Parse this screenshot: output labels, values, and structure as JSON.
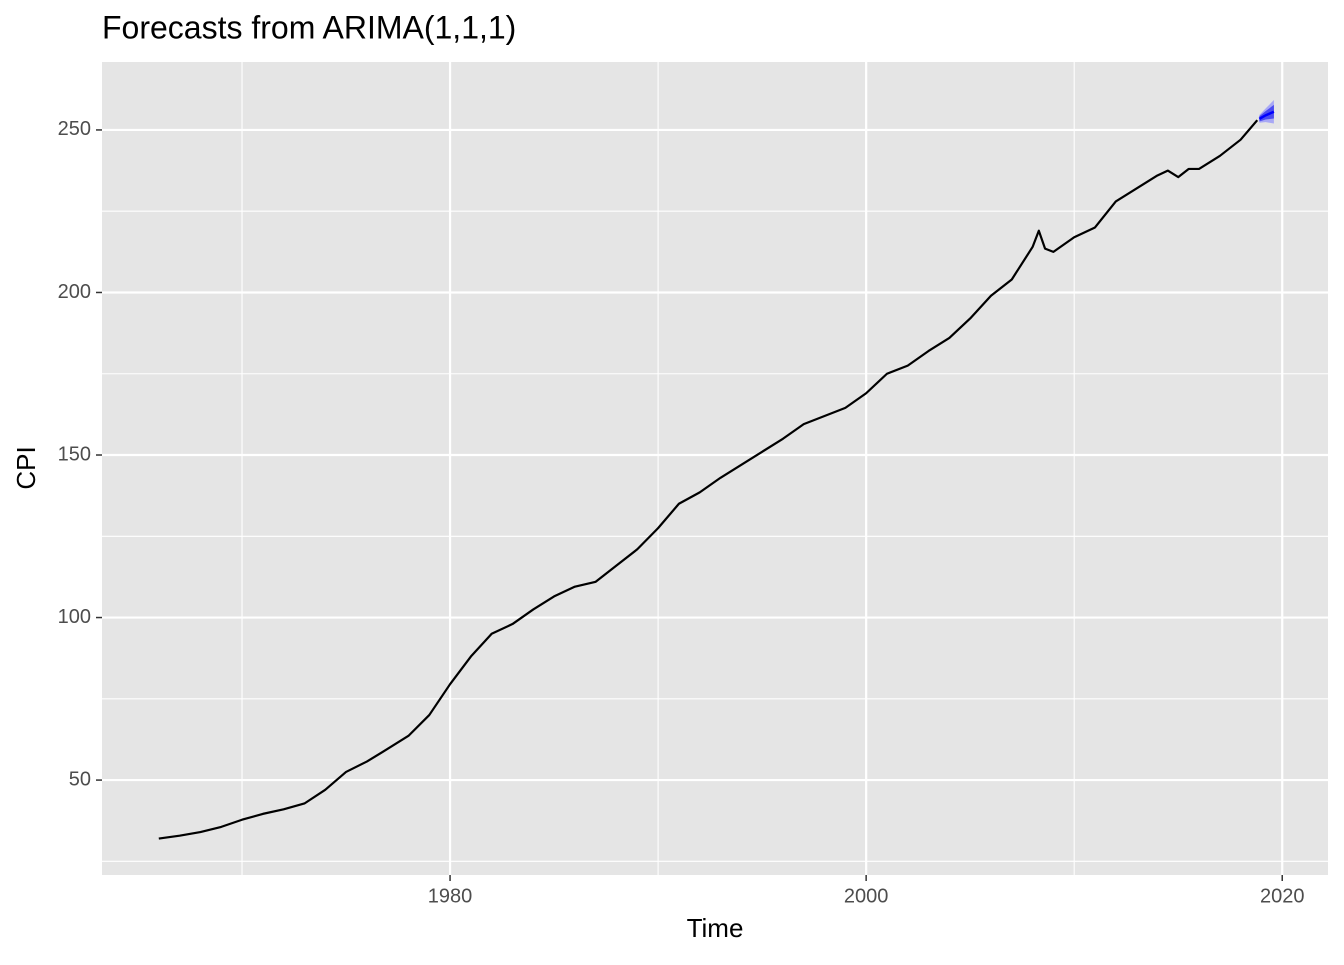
{
  "chart_data": {
    "type": "forecast",
    "title": "Forecasts from ARIMA(1,1,1)",
    "x_label": "Time",
    "y_label": "CPI",
    "xlim": [
      1963.27,
      2022.2
    ],
    "ylim": [
      20.8,
      270.9
    ],
    "xticks": [
      1980,
      2000,
      2020
    ],
    "yticks": [
      50,
      100,
      150,
      200,
      250
    ],
    "x_minor_grid": [
      1970,
      1990,
      2010
    ],
    "y_minor_grid": [
      25,
      75,
      125,
      175,
      225
    ],
    "grid": true,
    "color": "#000000",
    "x": [
      1966,
      1967,
      1968,
      1969,
      1970,
      1971,
      1972,
      1973,
      1974,
      1975,
      1976,
      1977,
      1978,
      1979,
      1980,
      1981,
      1982,
      1983,
      1984,
      1985,
      1986,
      1987,
      1988,
      1989,
      1990,
      1991,
      1992,
      1993,
      1994,
      1995,
      1996,
      1997,
      1998,
      1999,
      2000,
      2001,
      2002,
      2003,
      2004,
      2005,
      2006,
      2007,
      2008,
      2008.3,
      2008.6,
      2009,
      2010,
      2011,
      2012,
      2013,
      2014,
      2014.5,
      2015,
      2015.5,
      2016,
      2017,
      2018,
      2018.8
    ],
    "values": [
      32,
      32.9,
      34,
      35.6,
      37.8,
      39.6,
      41,
      42.8,
      47,
      52.5,
      55.7,
      59.6,
      63.6,
      70,
      79.5,
      88,
      95,
      98,
      102.5,
      106.5,
      109.5,
      111,
      116,
      121,
      127.5,
      135,
      138.5,
      143,
      147,
      151,
      155,
      159.5,
      162,
      164.5,
      169,
      175,
      177.5,
      182,
      186,
      192,
      199,
      204,
      214,
      219,
      213.5,
      212.5,
      217,
      220,
      228,
      232,
      236,
      237.5,
      235.5,
      238,
      238,
      242,
      247,
      253
    ],
    "forecast": {
      "x": [
        2018.9,
        2019.2,
        2019.6
      ],
      "mean": [
        253.4,
        254.5,
        255.6
      ],
      "lo80": [
        252.6,
        253.2,
        253.5
      ],
      "hi80": [
        254.2,
        255.8,
        257.7
      ],
      "lo95": [
        252.2,
        252.4,
        252
      ],
      "hi95": [
        254.6,
        256.6,
        259.2
      ],
      "color_mean": "#0000ff",
      "color_80": "#4b4bf0",
      "color_95": "#a8a8f5"
    }
  }
}
